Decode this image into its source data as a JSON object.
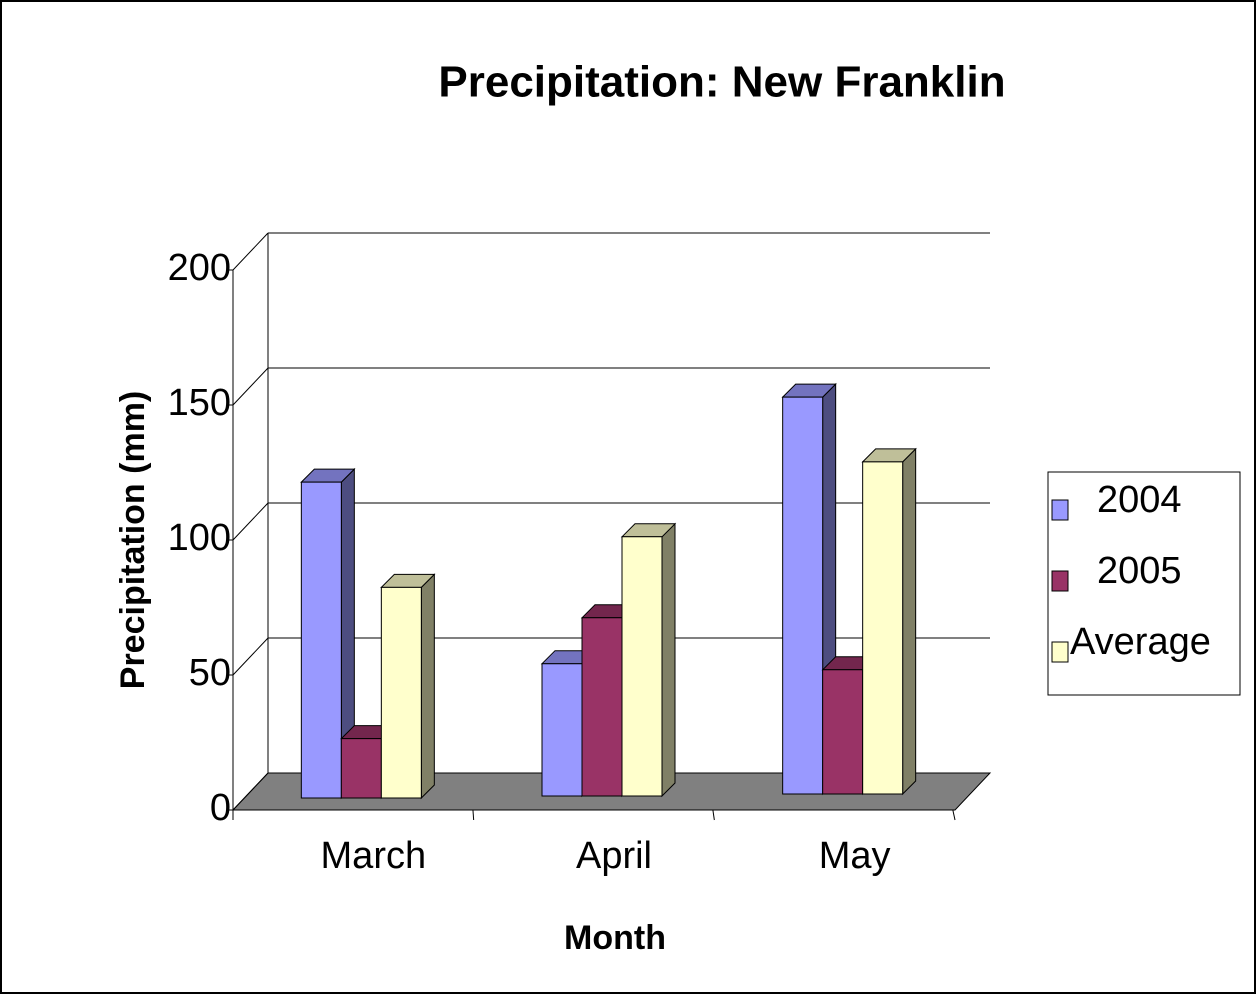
{
  "chart_data": {
    "type": "bar3d",
    "title": "Precipitation: New Franklin",
    "x_label": "Month",
    "y_label": "Precipitation (mm)",
    "categories": [
      "March",
      "April",
      "May"
    ],
    "series": [
      {
        "name": "2004",
        "color": "#9999ff",
        "values": [
          117,
          49,
          147
        ]
      },
      {
        "name": "2005",
        "color": "#993366",
        "values": [
          22,
          66,
          46
        ]
      },
      {
        "name": "Average",
        "color": "#ffffcc",
        "values": [
          78,
          96,
          123
        ]
      }
    ],
    "ylim": [
      0,
      200
    ],
    "yticks": [
      0,
      50,
      100,
      150,
      200
    ],
    "grid": true,
    "legend": "right"
  }
}
